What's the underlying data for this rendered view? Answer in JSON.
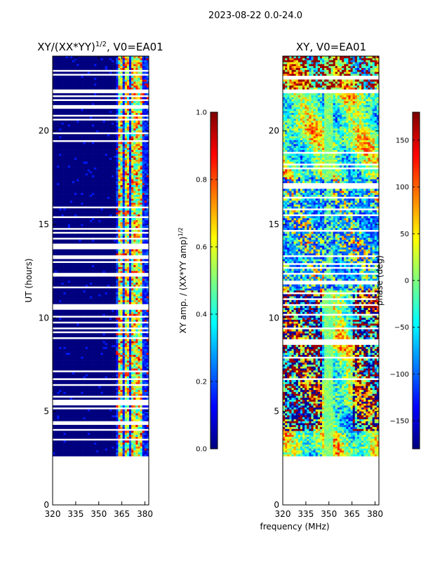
{
  "figure_title": "2023-08-22 0.0-24.0",
  "colors": {
    "cmap": [
      "#00007f",
      "#0000ff",
      "#007fff",
      "#00ffff",
      "#7fff7f",
      "#ffff00",
      "#ff7f00",
      "#ff0000",
      "#7f0000"
    ],
    "background": "#ffffff"
  },
  "chart_data": [
    {
      "type": "heatmap",
      "title": "XY/(XX*YY)",
      "title_exponent": "1/2",
      "title_suffix": ", V0=EA01",
      "xlabel": "",
      "ylabel": "UT (hours)",
      "xlim": [
        320,
        382.5
      ],
      "ylim": [
        0,
        24
      ],
      "xticks": [
        320,
        335,
        350,
        365,
        380
      ],
      "yticks": [
        0,
        5,
        10,
        15,
        20
      ],
      "data_time_ranges_hours": [
        [
          2.6,
          22.0
        ],
        [
          22.2,
          24.0
        ]
      ],
      "empty_gap_hours": [
        22.0,
        22.2
      ],
      "colorbar": {
        "label": "XY amp. / (XX*YY amp)",
        "label_exponent": "1/2",
        "range": [
          0.0,
          1.0
        ],
        "ticks": [
          "0.0",
          "0.2",
          "0.4",
          "0.6",
          "0.8",
          "1.0"
        ]
      },
      "description_of_values": "mostly 0 below 362 MHz; bright vertical stripes (0.3-0.9) at ~364, ~368, ~372, ~375, ~377 MHz"
    },
    {
      "type": "heatmap",
      "title": "XY, V0=EA01",
      "xlabel": "frequency (MHz)",
      "ylabel": "",
      "xlim": [
        320,
        382.5
      ],
      "ylim": [
        0,
        24
      ],
      "xticks": [
        320,
        335,
        350,
        365,
        380
      ],
      "yticks": [
        0,
        5,
        10,
        15,
        20
      ],
      "data_time_ranges_hours": [
        [
          2.6,
          22.0
        ],
        [
          22.2,
          24.0
        ]
      ],
      "empty_gap_hours": [
        22.0,
        22.2
      ],
      "colorbar": {
        "label": "phase (deg)",
        "range": [
          -180,
          180
        ],
        "ticks": [
          "−150",
          "−100",
          "−50",
          "0",
          "50",
          "100",
          "150"
        ]
      },
      "description_of_values": "phase noisy; near-zero vertical band around 348-352 MHz; large ±180 patches 4-11 h"
    }
  ]
}
